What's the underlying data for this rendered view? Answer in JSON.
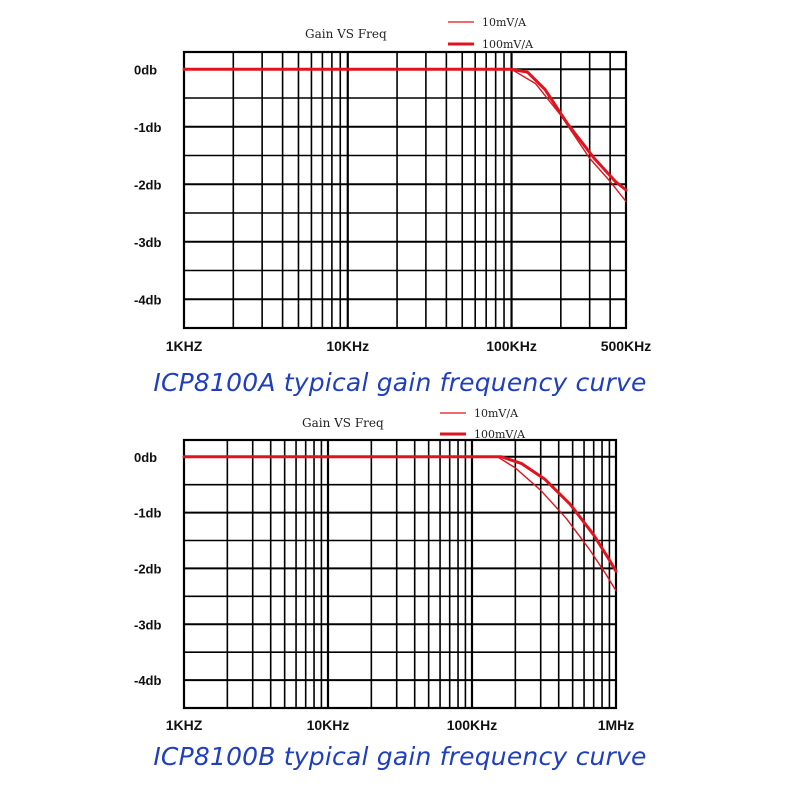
{
  "chart_data": [
    {
      "type": "line",
      "title": "Gain VS Freq",
      "caption": "ICP8100A typical gain frequency curve",
      "xscale": "log",
      "xlim": [
        1000,
        500000
      ],
      "ylim": [
        -4.5,
        0.3
      ],
      "x_ticks": [
        {
          "value": 1000,
          "label": "1KHZ"
        },
        {
          "value": 10000,
          "label": "10KHz"
        },
        {
          "value": 100000,
          "label": "100KHz"
        },
        {
          "value": 500000,
          "label": "500KHz"
        }
      ],
      "y_ticks": [
        {
          "value": 0,
          "label": "0db"
        },
        {
          "value": -1,
          "label": "-1db"
        },
        {
          "value": -2,
          "label": "-2db"
        },
        {
          "value": -3,
          "label": "-3db"
        },
        {
          "value": -4,
          "label": "-4db"
        }
      ],
      "grid": true,
      "legend_position": "top-right",
      "series": [
        {
          "name": "10mV/A",
          "color": "#e0141e",
          "weight": "thin",
          "x": [
            1000,
            100000,
            140000,
            200000,
            300000,
            400000,
            500000
          ],
          "y": [
            0,
            0,
            -0.25,
            -0.8,
            -1.55,
            -1.95,
            -2.3
          ]
        },
        {
          "name": "100mV/A",
          "color": "#e0141e",
          "weight": "thick",
          "x": [
            1000,
            100000,
            125000,
            160000,
            220000,
            320000,
            430000,
            500000
          ],
          "y": [
            0,
            0,
            -0.05,
            -0.35,
            -0.95,
            -1.55,
            -1.95,
            -2.1
          ]
        }
      ]
    },
    {
      "type": "line",
      "title": "Gain VS Freq",
      "caption": "ICP8100B typical gain frequency curve",
      "xscale": "log",
      "xlim": [
        1000,
        1000000
      ],
      "ylim": [
        -4.5,
        0.3
      ],
      "x_ticks": [
        {
          "value": 1000,
          "label": "1KHZ"
        },
        {
          "value": 10000,
          "label": "10KHz"
        },
        {
          "value": 100000,
          "label": "100KHz"
        },
        {
          "value": 1000000,
          "label": "1MHz"
        }
      ],
      "y_ticks": [
        {
          "value": 0,
          "label": "0db"
        },
        {
          "value": -1,
          "label": "-1db"
        },
        {
          "value": -2,
          "label": "-2db"
        },
        {
          "value": -3,
          "label": "-3db"
        },
        {
          "value": -4,
          "label": "-4db"
        }
      ],
      "grid": true,
      "legend_position": "top-right",
      "series": [
        {
          "name": "10mV/A",
          "color": "#e0141e",
          "weight": "thin",
          "x": [
            1000,
            150000,
            200000,
            300000,
            450000,
            650000,
            850000,
            1000000
          ],
          "y": [
            0,
            0,
            -0.2,
            -0.6,
            -1.1,
            -1.65,
            -2.1,
            -2.4
          ]
        },
        {
          "name": "100mV/A",
          "color": "#e0141e",
          "weight": "thick",
          "x": [
            1000,
            160000,
            220000,
            320000,
            480000,
            700000,
            900000,
            1000000
          ],
          "y": [
            0,
            0,
            -0.12,
            -0.4,
            -0.85,
            -1.4,
            -1.85,
            -2.05
          ]
        }
      ]
    }
  ]
}
